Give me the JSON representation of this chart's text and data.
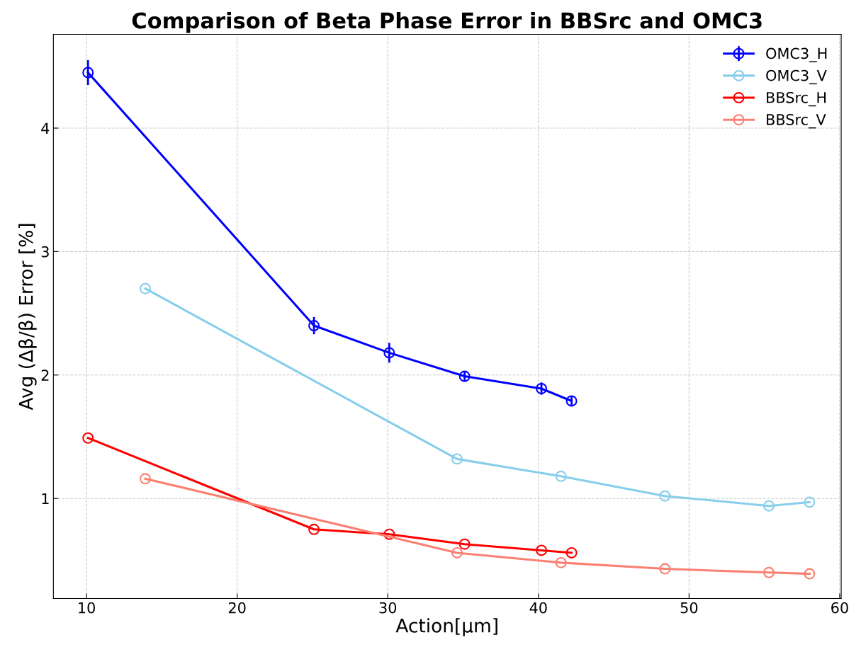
{
  "chart_data": {
    "type": "line",
    "title": "Comparison of Beta Phase Error in BBSrc and OMC3",
    "xlabel": "Action[μm]",
    "ylabel": "Avg (Δβ/β) Error [%]",
    "xlim": [
      7.8,
      60.1
    ],
    "ylim": [
      0.19,
      4.76
    ],
    "xticks": [
      10,
      20,
      30,
      40,
      50,
      60
    ],
    "yticks": [
      1,
      2,
      3,
      4
    ],
    "grid": true,
    "legend": "top right",
    "marker": "circle",
    "line_style": "solid",
    "series": [
      {
        "name": "OMC3_H",
        "color": "#0000ff",
        "x": [
          10.1,
          25.1,
          30.1,
          35.1,
          40.2,
          42.2
        ],
        "values": [
          4.45,
          2.4,
          2.18,
          1.99,
          1.89,
          1.79
        ],
        "errors": [
          0.1,
          0.07,
          0.08,
          0.04,
          0.05,
          0.04
        ]
      },
      {
        "name": "OMC3_V",
        "color": "#87ceeb",
        "x": [
          13.9,
          34.6,
          41.5,
          48.4,
          55.3,
          58.0
        ],
        "values": [
          2.7,
          1.32,
          1.18,
          1.02,
          0.94,
          0.97
        ]
      },
      {
        "name": "BBSrc_H",
        "color": "#ff0000",
        "x": [
          10.1,
          25.1,
          30.1,
          35.1,
          40.2,
          42.2
        ],
        "values": [
          1.49,
          0.75,
          0.71,
          0.63,
          0.58,
          0.56
        ]
      },
      {
        "name": "BBSrc_V",
        "color": "#fa8072",
        "x": [
          13.9,
          34.6,
          41.5,
          48.4,
          55.3,
          58.0
        ],
        "values": [
          1.16,
          0.56,
          0.48,
          0.43,
          0.4,
          0.39
        ]
      }
    ]
  }
}
